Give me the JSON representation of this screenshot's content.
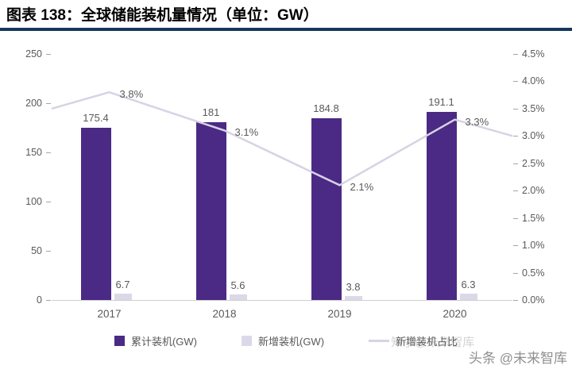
{
  "title": "图表 138：全球储能装机量情况（单位：GW）",
  "watermarks": {
    "overlay": "知乎@未来智库",
    "corner": "头条 @未来智库"
  },
  "chart_data": {
    "type": "bar",
    "subtype": "grouped-bar-with-line-overlay",
    "categories": [
      "2017",
      "2018",
      "2019",
      "2020"
    ],
    "series": [
      {
        "name": "累计装机(GW)",
        "type": "bar",
        "axis": "left",
        "color": "#4b2a85",
        "values": [
          175.4,
          181,
          184.8,
          191.1
        ],
        "labels": [
          "175.4",
          "181",
          "184.8",
          "191.1"
        ]
      },
      {
        "name": "新增装机(GW)",
        "type": "bar",
        "axis": "left",
        "color": "#dbd9e8",
        "values": [
          6.7,
          5.6,
          3.8,
          6.3
        ],
        "labels": [
          "6.7",
          "5.6",
          "3.8",
          "6.3"
        ]
      },
      {
        "name": "新增装机占比",
        "type": "line",
        "axis": "right",
        "color": "#d6d3e4",
        "values": [
          3.8,
          3.1,
          2.1,
          3.3
        ],
        "labels": [
          "3.8%",
          "3.1%",
          "2.1%",
          "3.3%"
        ]
      }
    ],
    "left_axis": {
      "min": 0,
      "max": 250,
      "step": 50,
      "ticks": [
        "0",
        "50",
        "100",
        "150",
        "200",
        "250"
      ]
    },
    "right_axis": {
      "min": 0,
      "max": 4.5,
      "step": 0.5,
      "ticks": [
        "0.0%",
        "0.5%",
        "1.0%",
        "1.5%",
        "2.0%",
        "2.5%",
        "3.0%",
        "3.5%",
        "4.0%",
        "4.5%"
      ]
    },
    "legend_position": "bottom",
    "grid": false,
    "line_edge_extension": {
      "left": 3.5,
      "right": 3.0
    }
  }
}
